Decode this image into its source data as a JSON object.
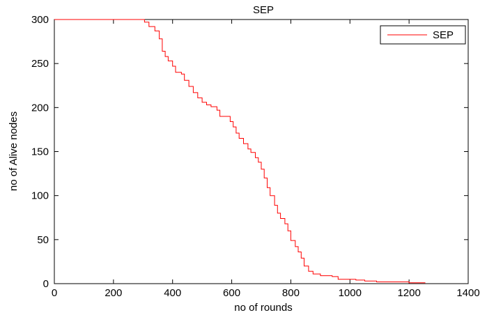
{
  "chart_data": {
    "type": "line",
    "title": "SEP",
    "xlabel": "no of rounds",
    "ylabel": "no of Alive nodes",
    "xlim": [
      0,
      1400
    ],
    "ylim": [
      0,
      300
    ],
    "xticks": [
      0,
      200,
      400,
      600,
      800,
      1000,
      1200,
      1400
    ],
    "yticks": [
      0,
      50,
      100,
      150,
      200,
      250,
      300
    ],
    "xtick_labels": [
      "0",
      "200",
      "400",
      "600",
      "800",
      "1000",
      "1200",
      "1400"
    ],
    "ytick_labels": [
      "0",
      "50",
      "100",
      "150",
      "200",
      "250",
      "300"
    ],
    "grid": false,
    "legend_position": "top-right",
    "legend": [
      "SEP"
    ],
    "series": [
      {
        "name": "SEP",
        "color": "#ff0000",
        "step": true,
        "points": [
          [
            0,
            300
          ],
          [
            290,
            300
          ],
          [
            305,
            297
          ],
          [
            320,
            292
          ],
          [
            340,
            287
          ],
          [
            355,
            278
          ],
          [
            365,
            264
          ],
          [
            375,
            258
          ],
          [
            385,
            253
          ],
          [
            400,
            247
          ],
          [
            410,
            240
          ],
          [
            430,
            238
          ],
          [
            440,
            231
          ],
          [
            455,
            224
          ],
          [
            470,
            217
          ],
          [
            485,
            211
          ],
          [
            500,
            206
          ],
          [
            515,
            203
          ],
          [
            530,
            201
          ],
          [
            550,
            197
          ],
          [
            560,
            190
          ],
          [
            585,
            190
          ],
          [
            595,
            184
          ],
          [
            605,
            178
          ],
          [
            615,
            171
          ],
          [
            625,
            165
          ],
          [
            640,
            159
          ],
          [
            655,
            153
          ],
          [
            665,
            149
          ],
          [
            680,
            143
          ],
          [
            690,
            138
          ],
          [
            700,
            130
          ],
          [
            710,
            120
          ],
          [
            720,
            109
          ],
          [
            730,
            100
          ],
          [
            745,
            89
          ],
          [
            755,
            80
          ],
          [
            765,
            74
          ],
          [
            780,
            68
          ],
          [
            790,
            60
          ],
          [
            800,
            49
          ],
          [
            815,
            42
          ],
          [
            825,
            36
          ],
          [
            835,
            29
          ],
          [
            845,
            20
          ],
          [
            860,
            14
          ],
          [
            875,
            11
          ],
          [
            900,
            9
          ],
          [
            940,
            8
          ],
          [
            960,
            5
          ],
          [
            1000,
            5
          ],
          [
            1020,
            4
          ],
          [
            1050,
            3
          ],
          [
            1090,
            2
          ],
          [
            1160,
            2
          ],
          [
            1200,
            1
          ],
          [
            1255,
            1
          ]
        ]
      }
    ]
  }
}
